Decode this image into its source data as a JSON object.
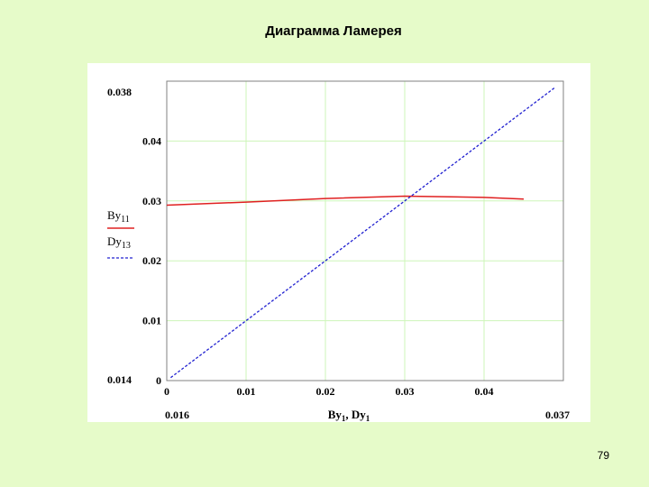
{
  "slide": {
    "title": "Диаграмма Ламерея",
    "page_number": "79"
  },
  "colors": {
    "background": "#e6fbc9",
    "grid": "#cdf5b8",
    "axis": "#808080",
    "series_By": "#e02020",
    "series_Dy": "#2020d0"
  },
  "chart_data": {
    "type": "line",
    "xlabel": "By1, Dy1",
    "xlim": [
      0,
      0.05
    ],
    "ylim": [
      0,
      0.05
    ],
    "x_ticks": [
      0,
      0.01,
      0.02,
      0.03,
      0.04
    ],
    "x_tick_labels": [
      "0",
      "0.01",
      "0.02",
      "0.03",
      "0.04"
    ],
    "y_ticks": [
      0,
      0.01,
      0.02,
      0.03,
      0.04
    ],
    "y_tick_labels": [
      "0",
      "0.01",
      "0.02",
      "0.03",
      "0.04"
    ],
    "x_range_labels": [
      "0.016",
      "0.037"
    ],
    "y_range_labels": [
      "0.014",
      "0.038"
    ],
    "grid": true,
    "legend_placement": "left",
    "series": [
      {
        "name": "By11",
        "style": "solid",
        "color": "#e02020",
        "x": [
          0,
          0.01,
          0.02,
          0.03,
          0.04,
          0.045
        ],
        "y": [
          0.0293,
          0.0298,
          0.0304,
          0.0308,
          0.0306,
          0.0303
        ]
      },
      {
        "name": "Dy13",
        "style": "dashed",
        "color": "#2020d0",
        "x": [
          0.0005,
          0.049
        ],
        "y": [
          0.0005,
          0.049
        ]
      }
    ]
  }
}
